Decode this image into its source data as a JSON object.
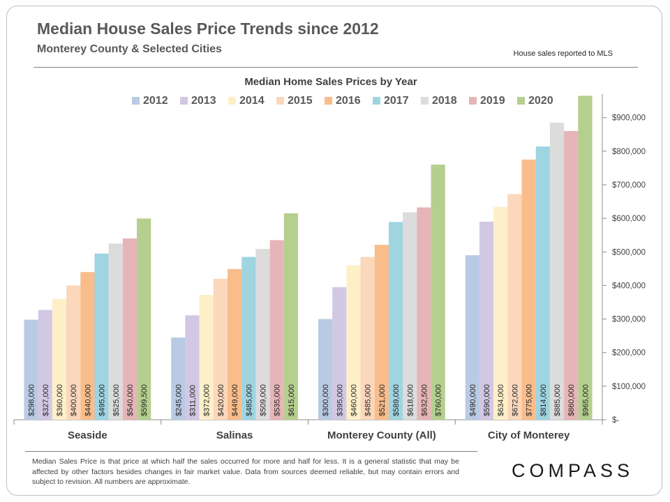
{
  "header": {
    "title": "Median House Sales Price Trends since 2012",
    "subtitle": "Monterey County  & Selected Cities",
    "source_note": "House sales reported to MLS"
  },
  "footnote": "Median Sales Price is that price at which half the sales occurred for more and half for less. It is a general statistic that may be affected by other factors besides changes in fair market value. Data from sources deemed reliable, but may contain errors and subject to revision.  All numbers are approximate.",
  "logo": {
    "text": "COMPASS"
  },
  "chart_data": {
    "type": "bar",
    "title": "Median Home Sales Prices by Year",
    "xlabel": "",
    "ylabel": "",
    "ylim": [
      0,
      970000
    ],
    "yticks": [
      0,
      100000,
      200000,
      300000,
      400000,
      500000,
      600000,
      700000,
      800000,
      900000
    ],
    "ytick_labels": [
      "$-",
      "$100,000",
      "$200,000",
      "$300,000",
      "$400,000",
      "$500,000",
      "$600,000",
      "$700,000",
      "$800,000",
      "$900,000"
    ],
    "y_axis_position": "right",
    "legend_position": "top",
    "categories": [
      "Seaside",
      "Salinas",
      "Monterey County (All)",
      "City of Monterey"
    ],
    "series": [
      {
        "name": "2012",
        "color": "#b9cae4",
        "values": [
          298000,
          245000,
          300000,
          490000
        ],
        "labels": [
          "$298,000",
          "$245,000",
          "$300,000",
          "$490,000"
        ]
      },
      {
        "name": "2013",
        "color": "#d2c8e4",
        "values": [
          327000,
          311000,
          395000,
          590000
        ],
        "labels": [
          "$327,000",
          "$311,000",
          "$395,000",
          "$590,000"
        ]
      },
      {
        "name": "2014",
        "color": "#fdf0c9",
        "values": [
          360000,
          372000,
          460000,
          634000
        ],
        "labels": [
          "$360,000",
          "$372,000",
          "$460,000",
          "$634,000"
        ]
      },
      {
        "name": "2015",
        "color": "#fbd7bb",
        "values": [
          400000,
          420000,
          485000,
          672000
        ],
        "labels": [
          "$400,000",
          "$420,000",
          "$485,000",
          "$672,000"
        ]
      },
      {
        "name": "2016",
        "color": "#f9bd8b",
        "values": [
          440000,
          449000,
          521000,
          775000
        ],
        "labels": [
          "$440,000",
          "$449,000",
          "$521,000",
          "$775,000"
        ]
      },
      {
        "name": "2017",
        "color": "#9fd4e1",
        "values": [
          495000,
          485000,
          589000,
          814000
        ],
        "labels": [
          "$495,000",
          "$485,000",
          "$589,000",
          "$814,000"
        ]
      },
      {
        "name": "2018",
        "color": "#dcdcdc",
        "values": [
          525000,
          509000,
          618000,
          885000
        ],
        "labels": [
          "$525,000",
          "$509,000",
          "$618,000",
          "$885,000"
        ]
      },
      {
        "name": "2019",
        "color": "#e6b5b7",
        "values": [
          540000,
          535000,
          632500,
          860000
        ],
        "labels": [
          "$540,000",
          "$535,000",
          "$632,500",
          "$860,000"
        ]
      },
      {
        "name": "2020",
        "color": "#b5cf8e",
        "values": [
          599500,
          615000,
          760000,
          965000
        ],
        "labels": [
          "$599,500",
          "$615,000",
          "$760,000",
          "$965,000"
        ]
      }
    ]
  }
}
